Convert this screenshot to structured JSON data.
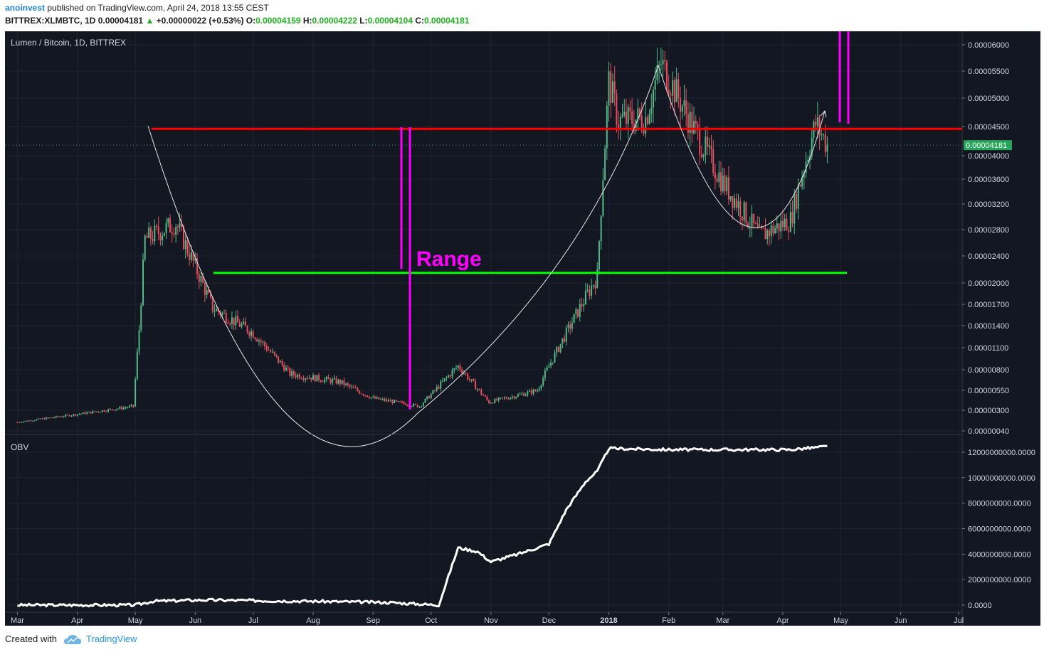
{
  "header": {
    "author": "anoinvest",
    "published": "published on TradingView.com, April 24, 2018 13:55 CEST",
    "symbol_line": "BITTREX:XLMBTC, 1D",
    "last": "0.00004181",
    "change": "+0.00000022 (+0.53%)",
    "o_label": "O:",
    "o": "0.00004159",
    "h_label": "H:",
    "h": "0.00004222",
    "l_label": "L:",
    "l": "0.00004104",
    "c_label": "C:",
    "c": "0.00004181"
  },
  "footer": {
    "created_with": "Created with",
    "brand": "TradingView"
  },
  "colors": {
    "background": "#131722",
    "bull": "#53b987",
    "bear": "#eb4d5c",
    "resistance": "#ff0000",
    "support": "#00ff00",
    "range": "#ff00ff",
    "curve": "#e8e8e8",
    "obv": "#ffffff",
    "price_tag": "#26a65b"
  },
  "chart_data": [
    {
      "type": "candlestick",
      "title": "Lumen / Bitcoin, 1D, BITTREX",
      "x_labels": [
        "Mar",
        "Apr",
        "May",
        "Jun",
        "Jul",
        "Aug",
        "Sep",
        "Oct",
        "Nov",
        "Dec",
        "2018",
        "Feb",
        "Mar",
        "Apr",
        "May",
        "Jun",
        "Jul"
      ],
      "y_ticks": [
        "0.00006000",
        "0.00005500",
        "0.00005000",
        "0.00004500",
        "0.00004000",
        "0.00003600",
        "0.00003200",
        "0.00002800",
        "0.00002400",
        "0.00002000",
        "0.00001700",
        "0.00001400",
        "0.00001100",
        "0.00000800",
        "0.00000550",
        "0.00000300",
        "0.00000040"
      ],
      "current_price": "0.00004181",
      "approx_close_path": [
        [
          "2017-03-01",
          1.5e-06
        ],
        [
          "2017-04-01",
          2.5e-06
        ],
        [
          "2017-04-30",
          3.5e-06
        ],
        [
          "2017-05-03",
          1.35e-05
        ],
        [
          "2017-05-06",
          2.65e-05
        ],
        [
          "2017-05-22",
          2.9e-05
        ],
        [
          "2017-06-10",
          1.65e-05
        ],
        [
          "2017-07-01",
          1.3e-05
        ],
        [
          "2017-07-20",
          7.5e-06
        ],
        [
          "2017-08-15",
          6.5e-06
        ],
        [
          "2017-09-01",
          4.5e-06
        ],
        [
          "2017-09-25",
          3.5e-06
        ],
        [
          "2017-10-15",
          8.5e-06
        ],
        [
          "2017-10-31",
          4e-06
        ],
        [
          "2017-11-25",
          5.5e-06
        ],
        [
          "2017-12-15",
          1.55e-05
        ],
        [
          "2017-12-26",
          2.1e-05
        ],
        [
          "2018-01-01",
          5.3e-05
        ],
        [
          "2018-01-06",
          4.6e-05
        ],
        [
          "2018-01-20",
          4.65e-05
        ],
        [
          "2018-01-28",
          5.65e-05
        ],
        [
          "2018-02-14",
          4.45e-05
        ],
        [
          "2018-03-01",
          3.55e-05
        ],
        [
          "2018-03-20",
          2.7e-05
        ],
        [
          "2018-04-05",
          2.95e-05
        ],
        [
          "2018-04-18",
          4.55e-05
        ],
        [
          "2018-04-24",
          4.181e-05
        ]
      ],
      "annotations": {
        "range_label": "Range",
        "resistance_level": 4.46e-05,
        "support_level": 2.15e-05
      }
    },
    {
      "type": "line",
      "indicator": "OBV",
      "y_ticks": [
        "12000000000.0000",
        "10000000000.0000",
        "8000000000.0000",
        "6000000000.0000",
        "4000000000.0000",
        "2000000000.0000",
        "0.0000"
      ],
      "approx_values": [
        [
          "2017-03-01",
          0
        ],
        [
          "2017-05-01",
          0
        ],
        [
          "2017-05-10",
          300000000
        ],
        [
          "2017-06-05",
          400000000
        ],
        [
          "2017-08-01",
          300000000
        ],
        [
          "2017-09-10",
          200000000
        ],
        [
          "2017-10-05",
          0
        ],
        [
          "2017-10-15",
          4500000000
        ],
        [
          "2017-10-25",
          4200000000
        ],
        [
          "2017-11-01",
          3400000000
        ],
        [
          "2017-11-15",
          4000000000
        ],
        [
          "2017-12-01",
          4800000000
        ],
        [
          "2017-12-10",
          7500000000
        ],
        [
          "2017-12-20",
          9700000000
        ],
        [
          "2017-12-26",
          10500000000
        ],
        [
          "2018-01-01",
          12300000000
        ],
        [
          "2018-02-01",
          12200000000
        ],
        [
          "2018-04-05",
          12200000000
        ],
        [
          "2018-04-24",
          12450000000
        ]
      ]
    }
  ]
}
